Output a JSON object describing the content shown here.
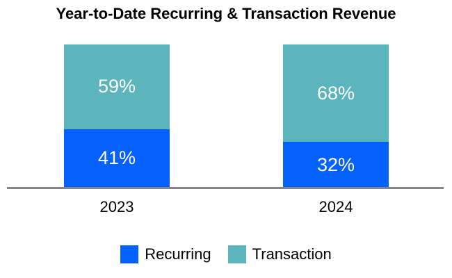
{
  "chart_data": {
    "type": "bar",
    "stacked": true,
    "title": "Year-to-Date Recurring & Transaction Revenue",
    "categories": [
      "2023",
      "2024"
    ],
    "series": [
      {
        "name": "Recurring",
        "values": [
          41,
          32
        ],
        "labels": [
          "41%",
          "32%"
        ],
        "color": "#0561FB"
      },
      {
        "name": "Transaction",
        "values": [
          59,
          68
        ],
        "labels": [
          "59%",
          "68%"
        ],
        "color": "#5CB4BC"
      }
    ],
    "value_unit": "%",
    "ylim": [
      0,
      100
    ],
    "grid": false,
    "legend_position": "bottom",
    "colors": {
      "recurring": "#0561FB",
      "transaction": "#5CB4BC",
      "axis_line": "#848484",
      "segment_label_text": "#FFFFFF",
      "title_text": "#000000",
      "background": "#FFFFFF"
    }
  }
}
